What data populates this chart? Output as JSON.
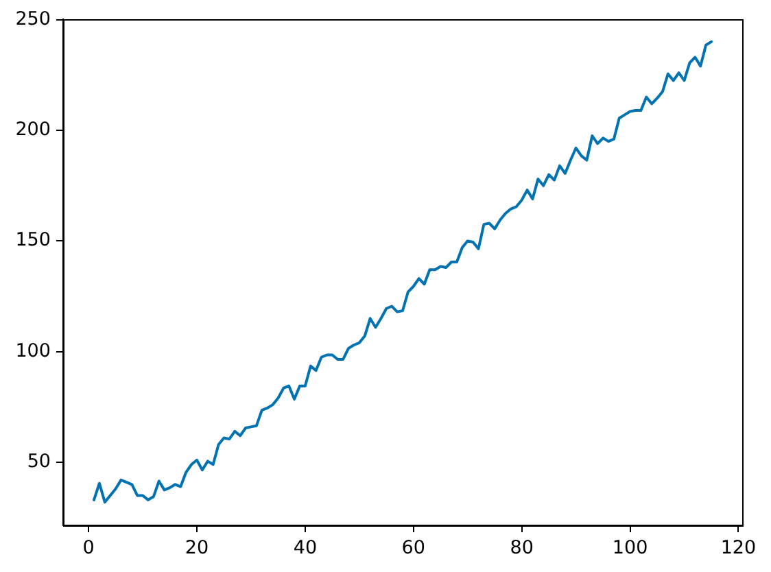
{
  "chart_data": {
    "type": "line",
    "x": [
      1,
      2,
      3,
      4,
      5,
      6,
      7,
      8,
      9,
      10,
      11,
      12,
      13,
      14,
      15,
      16,
      17,
      18,
      19,
      20,
      21,
      22,
      23,
      24,
      25,
      26,
      27,
      28,
      29,
      30,
      31,
      32,
      33,
      34,
      35,
      36,
      37,
      38,
      39,
      40,
      41,
      42,
      43,
      44,
      45,
      46,
      47,
      48,
      49,
      50,
      51,
      52,
      53,
      54,
      55,
      56,
      57,
      58,
      59,
      60,
      61,
      62,
      63,
      64,
      65,
      66,
      67,
      68,
      69,
      70,
      71,
      72,
      73,
      74,
      75,
      76,
      77,
      78,
      79,
      80,
      81,
      82,
      83,
      84,
      85,
      86,
      87,
      88,
      89,
      90,
      91,
      92,
      93,
      94,
      95,
      96,
      97,
      98,
      99,
      100,
      101,
      102,
      103,
      104,
      105,
      106,
      107,
      108,
      109,
      110,
      111,
      112,
      113,
      114,
      115
    ],
    "series": [
      {
        "color": "#0173b2",
        "values": [
          33,
          40.5,
          32,
          35,
          38,
          42,
          41,
          40,
          35,
          35,
          33,
          34.5,
          41.5,
          37.5,
          38.5,
          40,
          39,
          45.5,
          49,
          51,
          46.5,
          50.5,
          49,
          58,
          61,
          60.5,
          64,
          62,
          65.5,
          66,
          66.5,
          73.5,
          74.5,
          76,
          79,
          83.5,
          84.5,
          78.5,
          84.5,
          84.5,
          93.5,
          91.5,
          97.5,
          98.5,
          98.5,
          96.5,
          96.5,
          101.5,
          103,
          104,
          107,
          115,
          111,
          115,
          119.5,
          120.5,
          118,
          118.5,
          127,
          129.5,
          133,
          130.5,
          137,
          137,
          138.5,
          138,
          140.5,
          140.5,
          147,
          150,
          149.5,
          146.5,
          157.5,
          158,
          155.5,
          159.5,
          162.5,
          164.5,
          165.5,
          168.5,
          173,
          169,
          178,
          175,
          180,
          177.5,
          184,
          180.5,
          186.5,
          192,
          188.5,
          186.5,
          197.5,
          194,
          196.5,
          195,
          196,
          205.5,
          207,
          208.5,
          209,
          209,
          215,
          212,
          214.5,
          217.5,
          225.5,
          222.5,
          226,
          222.5,
          230.5,
          233,
          229,
          238.5,
          240
        ]
      }
    ],
    "xlim": [
      -4.7,
      120.7
    ],
    "xticks": [
      0,
      20,
      40,
      60,
      80,
      100,
      120
    ],
    "ylim": [
      21.5,
      250.2
    ],
    "yticks": [
      50,
      100,
      150,
      200,
      250
    ]
  }
}
